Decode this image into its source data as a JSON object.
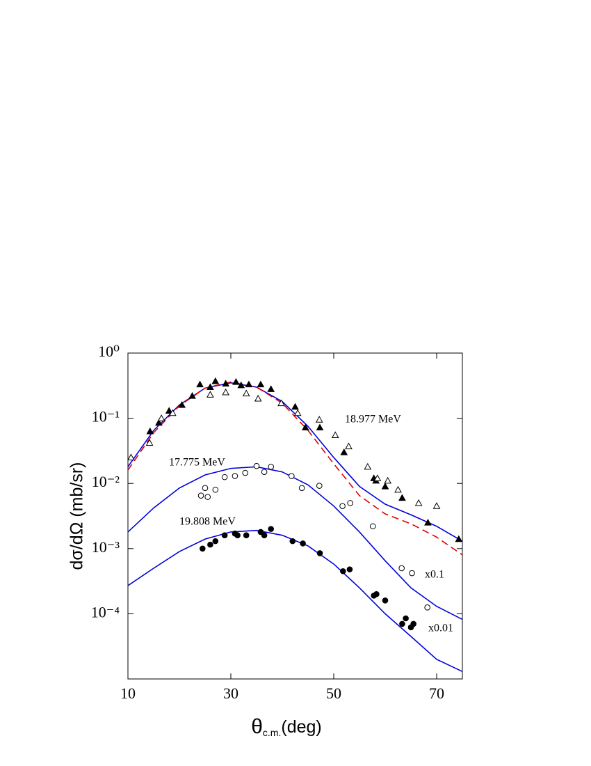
{
  "chart_data": {
    "type": "line",
    "ylabel": "dσ/dΩ (mb/sr)",
    "xlabel": "θ",
    "xlabel_sub": "c.m.",
    "xlabel_unit": "(deg)",
    "xlim": [
      10,
      75
    ],
    "xticks": [
      10,
      30,
      50,
      70
    ],
    "ylim": [
      1e-05,
      1
    ],
    "log_y": true,
    "yticks": [
      {
        "value": 1,
        "label": "10⁰"
      },
      {
        "value": 0.1,
        "label": "10⁻¹"
      },
      {
        "value": 0.01,
        "label": "10⁻²"
      },
      {
        "value": 0.001,
        "label": "10⁻³"
      },
      {
        "value": 0.0001,
        "label": "10⁻⁴"
      }
    ],
    "annotations": [
      "18.977 MeV",
      "17.775 MeV",
      "19.808 MeV",
      "x0.1",
      "x0.01"
    ],
    "series": [
      {
        "style": "solid",
        "color": "#0000dd",
        "x": [
          10,
          15,
          20,
          25,
          30,
          35,
          40,
          45,
          50,
          55,
          60,
          65,
          70,
          75
        ],
        "values": [
          0.018,
          0.065,
          0.16,
          0.29,
          0.35,
          0.3,
          0.18,
          0.075,
          0.025,
          0.009,
          0.0048,
          0.0033,
          0.0022,
          0.0013
        ]
      },
      {
        "style": "dashed",
        "color": "#dd0000",
        "x": [
          10,
          15,
          20,
          25,
          30,
          35,
          40,
          45,
          50,
          55,
          60,
          65,
          70,
          75
        ],
        "values": [
          0.016,
          0.06,
          0.155,
          0.29,
          0.36,
          0.3,
          0.17,
          0.065,
          0.02,
          0.0065,
          0.0034,
          0.0024,
          0.0015,
          0.0008
        ]
      },
      {
        "style": "solid",
        "color": "#0000dd",
        "x": [
          10,
          15,
          20,
          25,
          30,
          35,
          40,
          45,
          50,
          55,
          60,
          65,
          70,
          75
        ],
        "values": [
          0.0018,
          0.0042,
          0.0085,
          0.0135,
          0.017,
          0.018,
          0.015,
          0.0095,
          0.0045,
          0.0018,
          0.00065,
          0.00025,
          0.00013,
          8.2e-05
        ]
      },
      {
        "style": "solid",
        "color": "#0000dd",
        "x": [
          10,
          15,
          20,
          25,
          30,
          35,
          40,
          45,
          50,
          55,
          60,
          65,
          70,
          75
        ],
        "values": [
          0.00027,
          0.0005,
          0.0009,
          0.0014,
          0.0018,
          0.0019,
          0.0016,
          0.0011,
          0.00058,
          0.00025,
          0.0001,
          4.5e-05,
          2e-05,
          1.3e-05
        ]
      },
      {
        "style": "filled-triangle",
        "color": "#000000",
        "x": [
          14.3,
          16,
          18,
          20.5,
          22.5,
          24,
          26,
          27,
          29,
          31,
          32,
          33.5,
          35.8,
          37.8,
          42.5,
          44.5,
          47.3,
          52,
          57.8,
          58.2,
          60,
          63.3,
          68.3,
          74.3
        ],
        "values": [
          0.063,
          0.085,
          0.13,
          0.16,
          0.22,
          0.33,
          0.3,
          0.37,
          0.34,
          0.36,
          0.32,
          0.33,
          0.33,
          0.28,
          0.15,
          0.072,
          0.072,
          0.03,
          0.012,
          0.011,
          0.009,
          0.006,
          0.0025,
          0.0014
        ]
      },
      {
        "style": "open-triangle",
        "color": "#000000",
        "x": [
          10.6,
          14.2,
          16.5,
          18.7,
          26,
          29,
          33,
          35.3,
          39.8,
          43,
          47.2,
          50.3,
          52.9,
          56.6,
          58.5,
          60.5,
          62.5,
          66.5,
          70
        ],
        "values": [
          0.025,
          0.042,
          0.1,
          0.12,
          0.23,
          0.25,
          0.24,
          0.2,
          0.17,
          0.12,
          0.095,
          0.055,
          0.037,
          0.018,
          0.012,
          0.011,
          0.008,
          0.005,
          0.0045
        ]
      },
      {
        "style": "open-circle",
        "color": "#000000",
        "x": [
          24.2,
          25,
          25.5,
          27,
          28.8,
          30.8,
          32.8,
          35,
          36.5,
          37.8,
          41.8,
          43.8,
          47.2,
          51.7,
          53.2,
          57.6,
          63.2,
          65.2,
          68.2
        ],
        "values": [
          0.0065,
          0.0085,
          0.0062,
          0.008,
          0.0125,
          0.013,
          0.0145,
          0.0185,
          0.015,
          0.018,
          0.013,
          0.0085,
          0.0092,
          0.0045,
          0.005,
          0.0022,
          0.0005,
          0.00042,
          0.000125
        ]
      },
      {
        "style": "filled-circle",
        "color": "#000000",
        "x": [
          24.5,
          26,
          27,
          28.8,
          30.8,
          31.3,
          33,
          35.8,
          36.5,
          37.8,
          42,
          44,
          47.3,
          51.8,
          53.1,
          57.8,
          58.3,
          60,
          63.3,
          64,
          65,
          65.5
        ],
        "values": [
          0.001,
          0.00115,
          0.0013,
          0.0016,
          0.0017,
          0.0016,
          0.0016,
          0.0018,
          0.0016,
          0.002,
          0.0013,
          0.0012,
          0.00085,
          0.00045,
          0.00048,
          0.00019,
          0.0002,
          0.00016,
          7e-05,
          8.5e-05,
          6.2e-05,
          7e-05
        ]
      }
    ]
  }
}
